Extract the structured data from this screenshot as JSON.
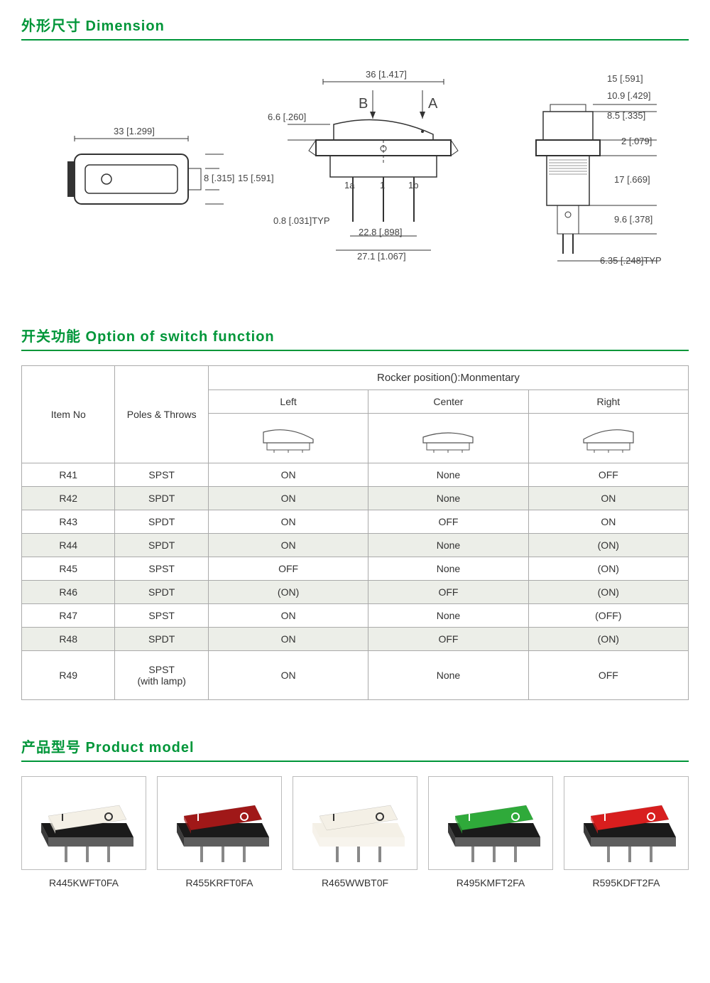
{
  "colors": {
    "accent": "#009639",
    "border_table": "#aaaaaa",
    "border_card": "#bbbbbb",
    "row_shade": "#eceee8",
    "text": "#333333",
    "rocker_black": "#1a1a1a",
    "rocker_white": "#f4f0e6",
    "rocker_red": "#a01818",
    "rocker_green": "#2faa3a",
    "rocker_red_bright": "#d81e1e"
  },
  "sections": {
    "dimension_title": "外形尺寸 Dimension",
    "switch_title": "开关功能 Option of switch function",
    "product_title": "产品型号 Product model"
  },
  "dimensions": {
    "view_top": {
      "w_label": "33 [1.299]",
      "h1_label": "8 [.315]",
      "h2_label": "15 [.591]"
    },
    "view_front": {
      "top_w": "36 [1.417]",
      "marks": {
        "B": "B",
        "A": "A"
      },
      "side_h": "6.6 [.260]",
      "pins": {
        "p1a": "1a",
        "p1": "1",
        "p1b": "1b"
      },
      "pin_spacing": "22.8 [.898]",
      "overall_w": "27.1 [1.067]",
      "pin_thick": "0.8 [.031]TYP"
    },
    "view_side": {
      "d1": "15 [.591]",
      "d2": "10.9 [.429]",
      "d3": "8.5 [.335]",
      "d4": "2 [.079]",
      "d5": "17 [.669]",
      "d6": "9.6 [.378]",
      "d7": "6.35 [.248]TYP"
    }
  },
  "switch_table": {
    "header_item": "Item No",
    "header_poles": "Poles & Throws",
    "header_rocker": "Rocker position():Monmentary",
    "header_left": "Left",
    "header_center": "Center",
    "header_right": "Right",
    "rows": [
      {
        "item": "R41",
        "poles": "SPST",
        "left": "ON",
        "center": "None",
        "right": "OFF",
        "shaded": false
      },
      {
        "item": "R42",
        "poles": "SPDT",
        "left": "ON",
        "center": "None",
        "right": "ON",
        "shaded": true
      },
      {
        "item": "R43",
        "poles": "SPDT",
        "left": "ON",
        "center": "OFF",
        "right": "ON",
        "shaded": false
      },
      {
        "item": "R44",
        "poles": "SPDT",
        "left": "ON",
        "center": "None",
        "right": "(ON)",
        "shaded": true
      },
      {
        "item": "R45",
        "poles": "SPST",
        "left": "OFF",
        "center": "None",
        "right": "(ON)",
        "shaded": false
      },
      {
        "item": "R46",
        "poles": "SPDT",
        "left": "(ON)",
        "center": "OFF",
        "right": "(ON)",
        "shaded": true
      },
      {
        "item": "R47",
        "poles": "SPST",
        "left": "ON",
        "center": "None",
        "right": "(OFF)",
        "shaded": false
      },
      {
        "item": "R48",
        "poles": "SPDT",
        "left": "ON",
        "center": "OFF",
        "right": "(ON)",
        "shaded": true
      },
      {
        "item": "R49",
        "poles": "SPST\n(with lamp)",
        "left": "ON",
        "center": "None",
        "right": "OFF",
        "shaded": false,
        "tall": true
      }
    ]
  },
  "products": [
    {
      "label": "R445KWFT0FA",
      "body": "#1a1a1a",
      "top": "#f4f0e6"
    },
    {
      "label": "R455KRFT0FA",
      "body": "#1a1a1a",
      "top": "#a01818"
    },
    {
      "label": "R465WWBT0F",
      "body": "#f4f0e6",
      "top": "#f4f0e6"
    },
    {
      "label": "R495KMFT2FA",
      "body": "#1a1a1a",
      "top": "#2faa3a"
    },
    {
      "label": "R595KDFT2FA",
      "body": "#1a1a1a",
      "top": "#d81e1e"
    }
  ]
}
